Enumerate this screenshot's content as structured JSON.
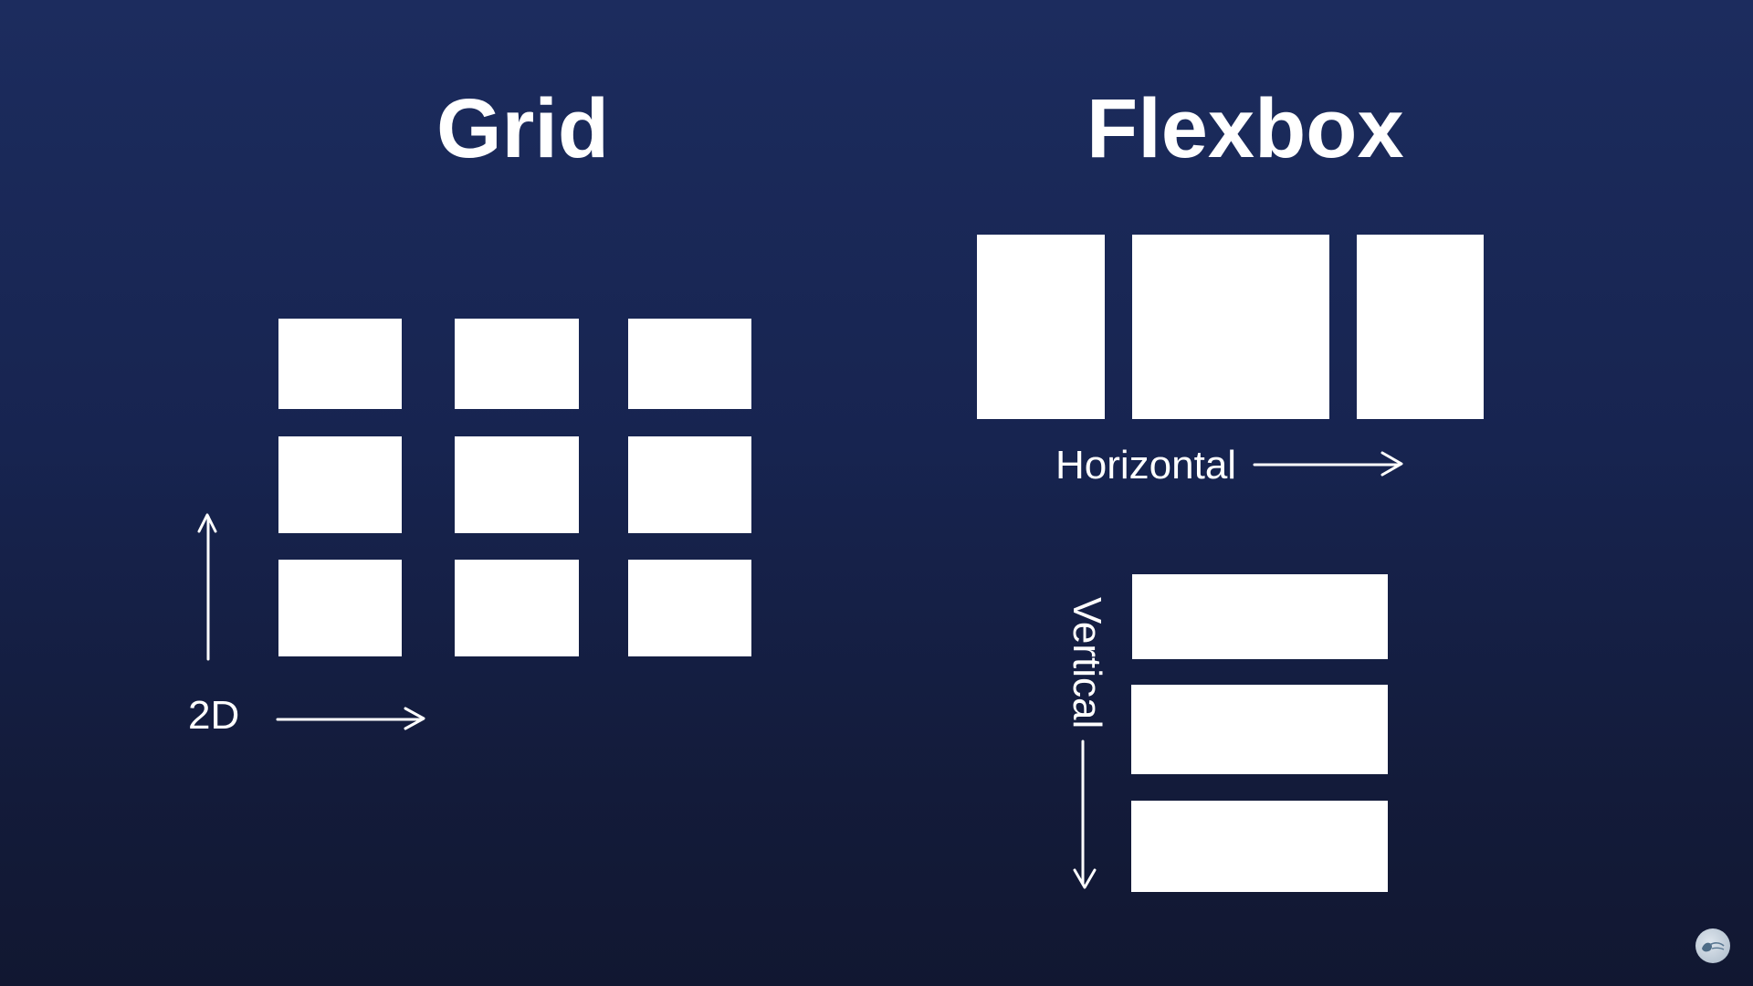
{
  "grid": {
    "title": "Grid",
    "label": "2D"
  },
  "flexbox": {
    "title": "Flexbox",
    "horizontal_label": "Horizontal",
    "vertical_label": "Vertical"
  },
  "colors": {
    "background_top": "#1c2c5e",
    "background_bottom": "#111731",
    "shapes": "#ffffff"
  },
  "icons": [
    "arrow-up-icon",
    "arrow-right-icon",
    "arrow-down-icon",
    "channel-logo-icon"
  ]
}
